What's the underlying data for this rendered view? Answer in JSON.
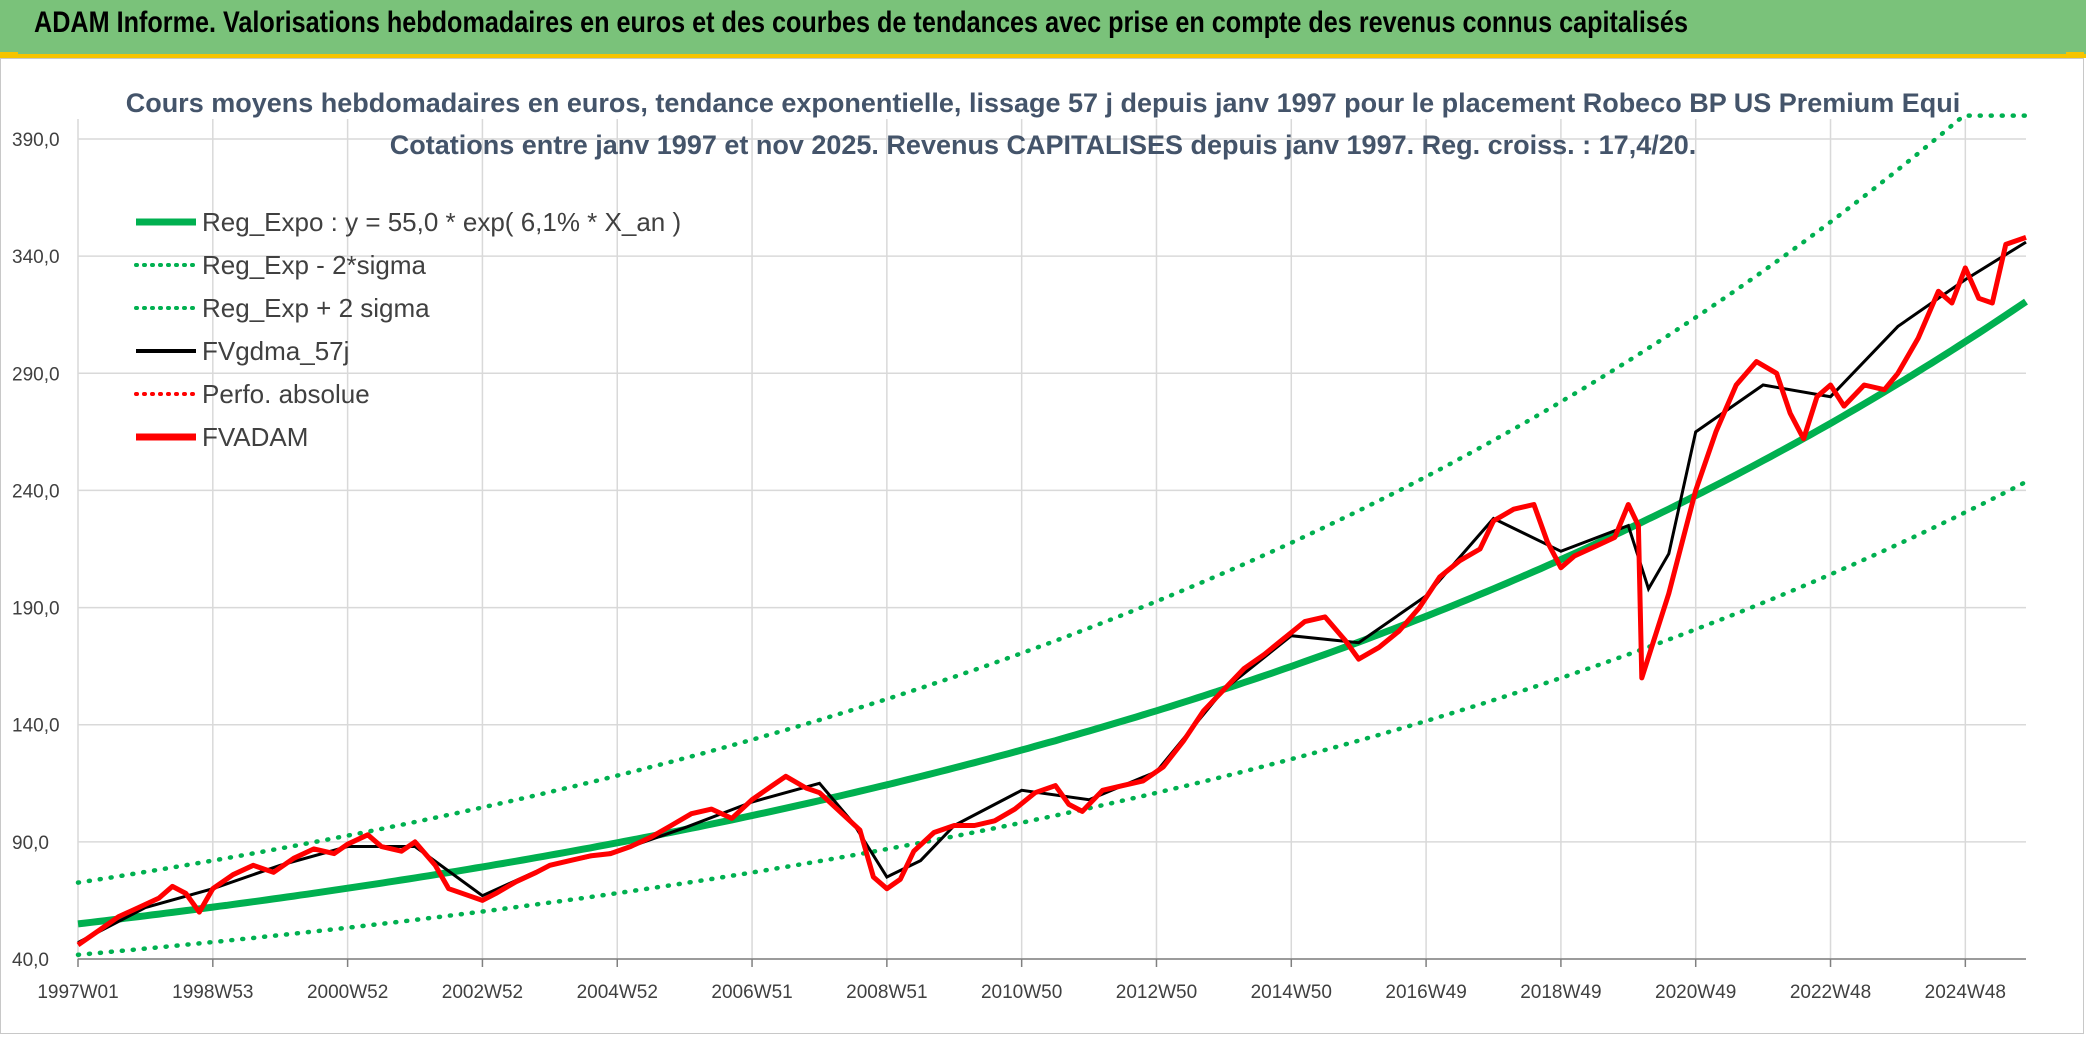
{
  "header": {
    "title": "ADAM Informe. Valorisations hebdomadaires en euros et des courbes de tendances avec prise en compte des revenus connus capitalisés"
  },
  "colors": {
    "banner": "#7ac27a",
    "accent": "#f6c400",
    "trend": "#00b050",
    "price": "#ff0000",
    "smooth": "#000000",
    "grid": "#d9d9d9"
  },
  "chart_data": {
    "type": "line",
    "title": "Cours moyens hebdomadaires en euros, tendance exponentielle, lissage 57 j depuis janv 1997 pour le placement Robeco BP US Premium Equi",
    "subtitle": "Cotations entre janv 1997 et nov 2025. Revenus CAPITALISES depuis janv 1997. Reg. croiss. : 17,4/20.",
    "xlabel": "",
    "ylabel": "",
    "ylim": [
      40,
      390
    ],
    "yticks": [
      "390,0",
      "340,0",
      "290,0",
      "240,0",
      "190,0",
      "140,0",
      "90,0",
      "40,0"
    ],
    "xticks": [
      "1997W01",
      "1998W53",
      "2000W52",
      "2002W52",
      "2004W52",
      "2006W51",
      "2008W51",
      "2010W50",
      "2012W50",
      "2014W50",
      "2016W49",
      "2018W49",
      "2020W49",
      "2022W48",
      "2024W48"
    ],
    "x_range": [
      1997.0,
      2025.9
    ],
    "grid": true,
    "legend_position": "top-left",
    "legend": [
      {
        "label": "Reg_Expo : y = 55,0 * exp( 6,1% *  X_an )",
        "color": "#00b050",
        "style": "solid-thick"
      },
      {
        "label": "Reg_Exp - 2*sigma",
        "color": "#00b050",
        "style": "dotted"
      },
      {
        "label": "Reg_Exp + 2 sigma",
        "color": "#00b050",
        "style": "dotted"
      },
      {
        "label": "FVgdma_57j",
        "color": "#000000",
        "style": "solid"
      },
      {
        "label": "Perfo. absolue",
        "color": "#ff0000",
        "style": "dotted"
      },
      {
        "label": "FVADAM",
        "color": "#ff0000",
        "style": "solid-thick"
      }
    ],
    "trend": {
      "a": 55.0,
      "rate": 0.061,
      "lower_factor": 0.76,
      "upper_factor": 1.32,
      "upper_cap": 400
    },
    "series": [
      {
        "name": "FVADAM",
        "x": [
          1997.0,
          1997.3,
          1997.6,
          1997.9,
          1998.2,
          1998.4,
          1998.6,
          1998.8,
          1999.0,
          1999.3,
          1999.6,
          1999.9,
          2000.2,
          2000.5,
          2000.8,
          2001.0,
          2001.3,
          2001.5,
          2001.8,
          2002.0,
          2002.3,
          2002.5,
          2002.8,
          2003.0,
          2003.2,
          2003.5,
          2003.8,
          2004.0,
          2004.3,
          2004.6,
          2004.9,
          2005.2,
          2005.5,
          2005.8,
          2006.1,
          2006.4,
          2006.7,
          2007.0,
          2007.3,
          2007.5,
          2007.8,
          2008.0,
          2008.3,
          2008.6,
          2008.8,
          2009.0,
          2009.2,
          2009.4,
          2009.7,
          2010.0,
          2010.3,
          2010.6,
          2010.9,
          2011.2,
          2011.5,
          2011.7,
          2011.9,
          2012.2,
          2012.5,
          2012.8,
          2013.1,
          2013.4,
          2013.7,
          2014.0,
          2014.3,
          2014.6,
          2014.9,
          2015.2,
          2015.5,
          2015.8,
          2016.0,
          2016.3,
          2016.6,
          2016.9,
          2017.2,
          2017.5,
          2017.8,
          2018.0,
          2018.3,
          2018.6,
          2018.8,
          2019.0,
          2019.2,
          2019.5,
          2019.8,
          2020.0,
          2020.15,
          2020.2,
          2020.4,
          2020.6,
          2020.8,
          2021.0,
          2021.3,
          2021.6,
          2021.9,
          2022.2,
          2022.4,
          2022.6,
          2022.8,
          2023.0,
          2023.2,
          2023.5,
          2023.8,
          2024.0,
          2024.3,
          2024.6,
          2024.8,
          2025.0,
          2025.2,
          2025.4,
          2025.6,
          2025.9
        ],
        "values": [
          46,
          52,
          58,
          62,
          66,
          71,
          68,
          60,
          70,
          76,
          80,
          77,
          83,
          87,
          85,
          89,
          93,
          88,
          86,
          90,
          80,
          70,
          67,
          65,
          68,
          73,
          77,
          80,
          82,
          84,
          85,
          88,
          92,
          97,
          102,
          104,
          100,
          108,
          114,
          118,
          113,
          111,
          103,
          95,
          75,
          70,
          74,
          86,
          94,
          97,
          97,
          99,
          104,
          111,
          114,
          106,
          103,
          112,
          114,
          116,
          122,
          133,
          146,
          155,
          164,
          170,
          177,
          184,
          186,
          176,
          168,
          173,
          180,
          190,
          203,
          210,
          215,
          227,
          232,
          234,
          218,
          207,
          212,
          216,
          220,
          234,
          225,
          160,
          178,
          196,
          218,
          240,
          265,
          285,
          295,
          290,
          273,
          262,
          280,
          285,
          276,
          285,
          283,
          290,
          305,
          325,
          320,
          335,
          322,
          320,
          345,
          348
        ]
      },
      {
        "name": "FVgdma_57j",
        "x": [
          1997.0,
          1998.0,
          1999.0,
          2000.0,
          2001.0,
          2002.0,
          2003.0,
          2004.0,
          2005.0,
          2006.0,
          2007.0,
          2008.0,
          2008.5,
          2009.0,
          2009.5,
          2010.0,
          2011.0,
          2012.0,
          2013.0,
          2014.0,
          2015.0,
          2016.0,
          2017.0,
          2018.0,
          2019.0,
          2020.0,
          2020.3,
          2020.6,
          2021.0,
          2022.0,
          2023.0,
          2024.0,
          2025.0,
          2025.9
        ],
        "values": [
          47,
          62,
          70,
          80,
          88,
          88,
          67,
          80,
          86,
          96,
          107,
          115,
          98,
          75,
          82,
          97,
          112,
          108,
          120,
          155,
          178,
          175,
          195,
          228,
          214,
          225,
          198,
          213,
          265,
          285,
          280,
          310,
          330,
          346
        ]
      }
    ]
  }
}
